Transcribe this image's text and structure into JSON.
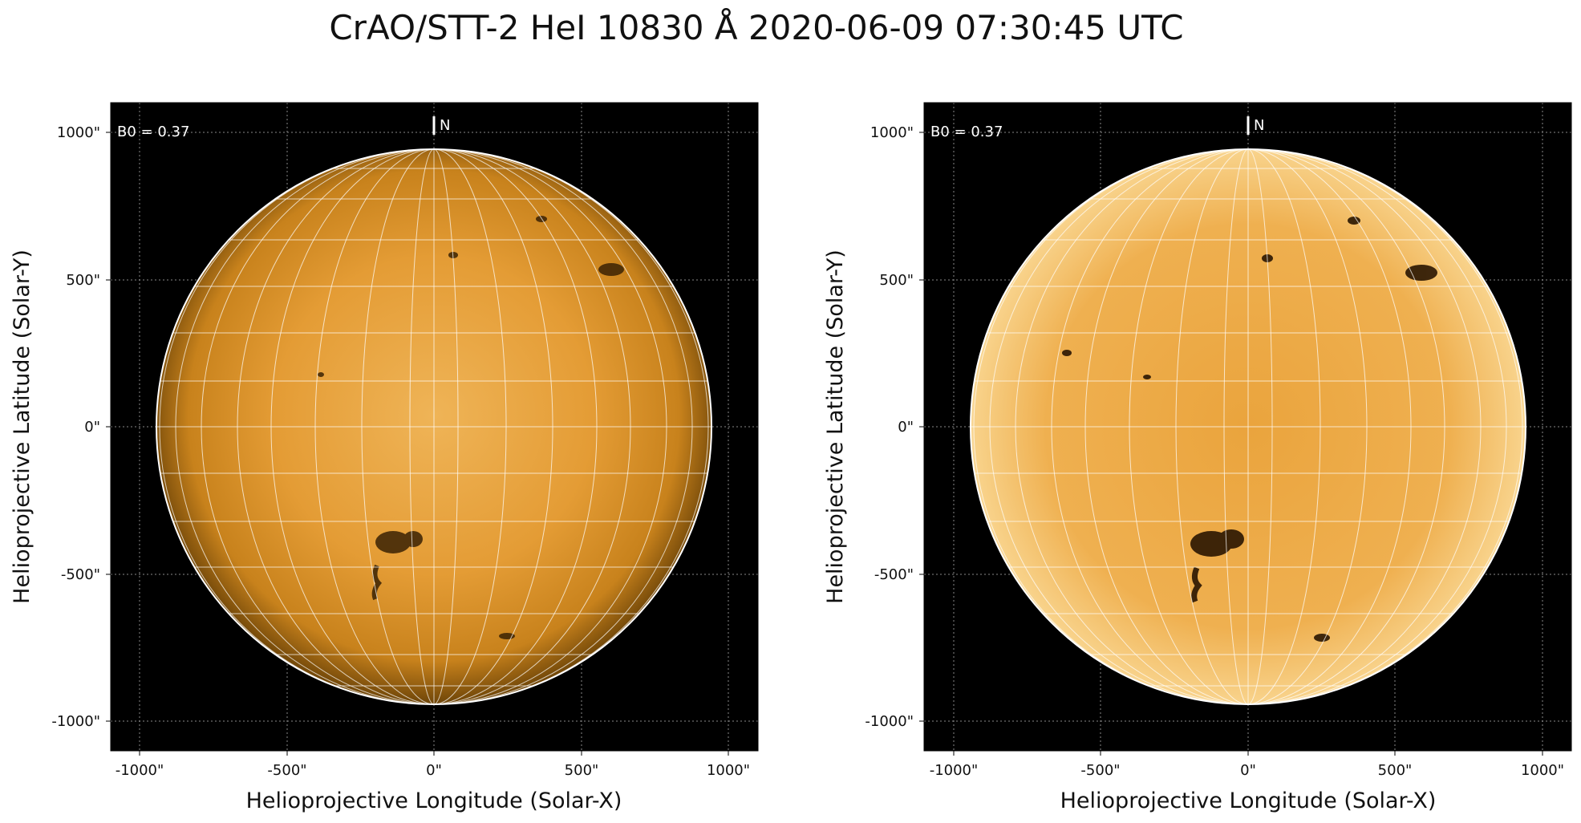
{
  "title": "CrAO/STT-2 HeI 10830 Å 2020-06-09 07:30:45 UTC",
  "panels": [
    {
      "b0_label": "B0 = 0.37",
      "north_label": "N",
      "xlabel": "Helioprojective Longitude (Solar-X)",
      "ylabel": "Helioprojective Latitude (Solar-Y)",
      "xticks": [
        "-1000\"",
        "-500\"",
        "0\"",
        "500\"",
        "1000\""
      ],
      "yticks": [
        "1000\"",
        "500\"",
        "0\"",
        "-500\"",
        "-1000\""
      ],
      "style": "standard"
    },
    {
      "b0_label": "B0 = 0.37",
      "north_label": "N",
      "xlabel": "Helioprojective Longitude (Solar-X)",
      "ylabel": "Helioprojective Latitude (Solar-Y)",
      "xticks": [
        "-1000\"",
        "-500\"",
        "0\"",
        "500\"",
        "1000\""
      ],
      "yticks": [
        "1000\"",
        "500\"",
        "0\"",
        "-500\"",
        "-1000\""
      ],
      "style": "enhanced"
    }
  ],
  "colors": {
    "sun_center": "#e8a640",
    "sun_edge": "#c07a10",
    "enhanced_center": "#f2b451",
    "enhanced_edge": "#e9a23a",
    "background": "#000000",
    "grid": "#ffffff"
  }
}
